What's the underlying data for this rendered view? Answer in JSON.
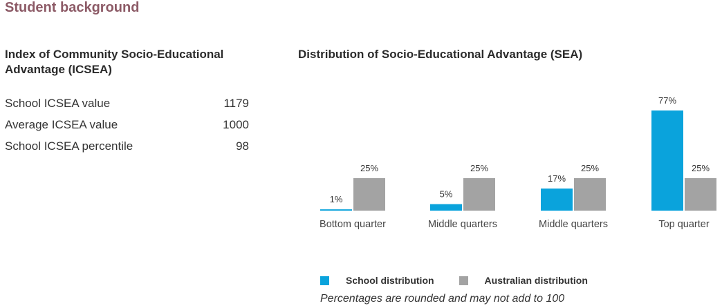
{
  "section_title": "Student background",
  "icsea": {
    "heading": "Index of Community Socio-Educational Advantage (ICSEA)",
    "rows": [
      {
        "label": "School ICSEA value",
        "value": "1179"
      },
      {
        "label": "Average ICSEA value",
        "value": "1000"
      },
      {
        "label": "School ICSEA percentile",
        "value": "98"
      }
    ]
  },
  "sea": {
    "heading": "Distribution of Socio-Educational Advantage (SEA)"
  },
  "colors": {
    "school": "#0aa3dc",
    "australian": "#a3a3a3"
  },
  "chart_data": {
    "type": "bar",
    "title": "Distribution of Socio-Educational Advantage (SEA)",
    "categories": [
      "Bottom quarter",
      "Middle quarters",
      "Middle quarters",
      "Top quarter"
    ],
    "series": [
      {
        "name": "School distribution",
        "values": [
          1,
          5,
          17,
          77
        ],
        "labels": [
          "1%",
          "5%",
          "17%",
          "77%"
        ]
      },
      {
        "name": "Australian distribution",
        "values": [
          25,
          25,
          25,
          25
        ],
        "labels": [
          "25%",
          "25%",
          "25%",
          "25%"
        ]
      }
    ],
    "ylim": [
      0,
      77
    ],
    "grid": false,
    "legend": "bottom"
  },
  "legend": {
    "school_label": "School distribution",
    "australian_label": "Australian distribution"
  },
  "footnote": "Percentages are rounded and may not add to 100"
}
